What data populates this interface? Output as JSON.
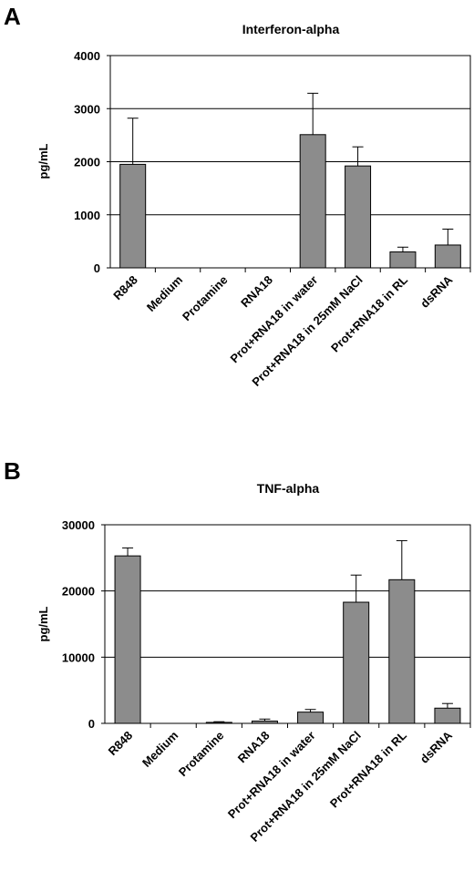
{
  "chart_data": [
    {
      "panel": "A",
      "type": "bar",
      "title": "Interferon-alpha",
      "xlabel": "",
      "ylabel": "pg/mL",
      "ylim": [
        0,
        4000
      ],
      "yticks": [
        0,
        1000,
        2000,
        3000,
        4000
      ],
      "grid": true,
      "categories": [
        "R848",
        "Medium",
        "Protamine",
        "RNA18",
        "Prot+RNA18 in water",
        "Prot+RNA18 in 25mM NaCl",
        "Prot+RNA18 in RL",
        "dsRNA"
      ],
      "values": [
        1950,
        0,
        0,
        0,
        2510,
        1920,
        300,
        430
      ],
      "errors": [
        870,
        0,
        0,
        0,
        780,
        360,
        90,
        300
      ],
      "bar_color": "#8c8c8c"
    },
    {
      "panel": "B",
      "type": "bar",
      "title": "TNF-alpha",
      "xlabel": "",
      "ylabel": "pg/mL",
      "ylim": [
        0,
        30000
      ],
      "yticks": [
        0,
        10000,
        20000,
        30000
      ],
      "grid": true,
      "categories": [
        "R848",
        "Medium",
        "Protamine",
        "RNA18",
        "Prot+RNA18 in water",
        "Prot+RNA18 in 25mM NaCl",
        "Prot+RNA18 in RL",
        "dsRNA"
      ],
      "values": [
        25300,
        0,
        150,
        350,
        1700,
        18300,
        21700,
        2300
      ],
      "errors": [
        1200,
        0,
        100,
        300,
        400,
        4100,
        5900,
        700
      ],
      "bar_color": "#8c8c8c"
    }
  ]
}
